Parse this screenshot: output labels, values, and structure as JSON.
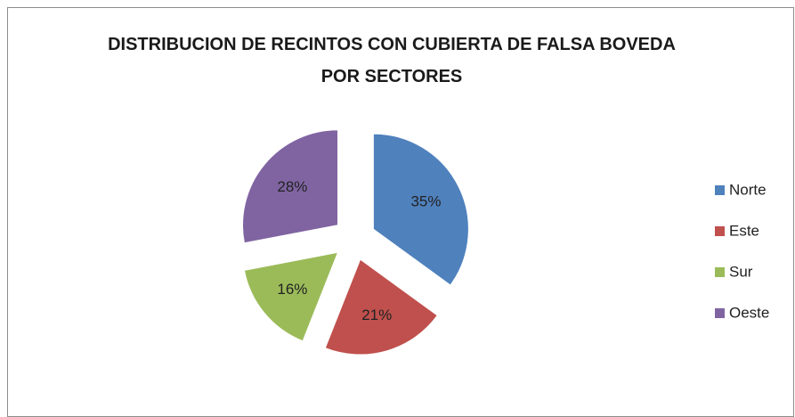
{
  "chart_data": {
    "type": "pie",
    "title": "DISTRIBUCION DE RECINTOS CON CUBIERTA DE FALSA BOVEDA POR SECTORES",
    "categories": [
      "Norte",
      "Este",
      "Sur",
      "Oeste"
    ],
    "values": [
      35,
      21,
      16,
      28
    ],
    "value_labels": [
      "35%",
      "21%",
      "16%",
      "28%"
    ],
    "colors": [
      "#4f81bd",
      "#c0504d",
      "#9bbb59",
      "#8064a2"
    ],
    "legend": "right",
    "exploded": true
  }
}
